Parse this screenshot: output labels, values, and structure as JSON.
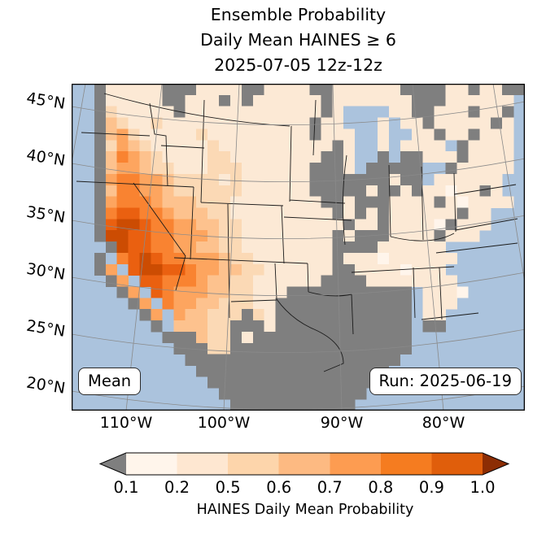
{
  "title": {
    "line1": "Ensemble Probability",
    "line2": "Daily Mean HAINES ≥ 6",
    "line3": "2025-07-05 12z-12z"
  },
  "map": {
    "mean_label": "Mean",
    "run_label": "Run: 2025-06-19",
    "y_ticks": [
      "45°N",
      "40°N",
      "35°N",
      "30°N",
      "25°N",
      "20°N"
    ],
    "x_ticks": [
      "110°W",
      "100°W",
      "90°W",
      "80°W"
    ],
    "colors": {
      "ocean": "#abc3dd",
      "graticule": "#8a8a8a",
      "state_borders": "#1a1a1a",
      "frame": "#000000"
    }
  },
  "colorbar": {
    "ticks": [
      "0.1",
      "0.2",
      "0.5",
      "0.6",
      "0.7",
      "0.8",
      "0.9",
      "1.0"
    ],
    "label": "HAINES Daily Mean Probability",
    "segment_colors": [
      "#fff5eb",
      "#fee7d1",
      "#fdd5ab",
      "#fdba82",
      "#fd9c51",
      "#f57c20",
      "#e05e0b"
    ],
    "under_arrow_color": "#7f7f7f",
    "over_arrow_color": "#8c2d04"
  },
  "chart_data": {
    "type": "heatmap",
    "title": "Ensemble Probability Daily Mean HAINES ≥ 6, 2025-07-05 12z-12z",
    "projection_hint": "Lambert-conformal style CONUS map, lat 20-45N labeled, lon 110-80W labeled",
    "colorbar": {
      "label": "HAINES Daily Mean Probability",
      "boundaries": [
        0.1,
        0.2,
        0.5,
        0.6,
        0.7,
        0.8,
        0.9,
        1.0
      ],
      "extend": "both",
      "under_color_meaning": "below 0.1 (gray cells)",
      "over_color_meaning": "at 1.0 (dark orange)"
    },
    "annotations": [
      "Mean",
      "Run: 2025-06-19"
    ],
    "legend": {
      "0": "#fff5eb",
      "1": "#fce9d5",
      "2": "#fbd9b5",
      "3": "#fdc28e",
      "4": "#fda55f",
      "5": "#f98331",
      "6": "#ea6010",
      "7": "#cc4c02",
      "g": "#7f7f7f",
      "L": "#abc3dd"
    },
    "grid_note": "Approximate 40x29 cell field; '.'=ocean, g=gray(<0.1), L=lake, 0-7 increasing probability",
    "grid": [
      "..g11111ggg1111gg1111gg111111gggg11g11gg",
      "..g11111gg111g1g111111g1111111ggg111111.",
      "..g211111g111111111111g1LLLL11gg111g11g.",
      "..g321121111111111111g11LLL1L11g11111g1.",
      "..g342111112111111111g111LL1LL11g11g111.",
      "..g24321111121111111111g1LL1L1111Lg1111.",
      "..g3543211112211111111gg1LLgLgg111g1111.",
      "..g344322111222111111ggg1LgggggLLg11111.",
      "..g455443222212111111ggggggg1ggL111111..",
      "..g355443222222111111ggggg1gg1g11011g1..",
      "..g4555433322211111111gg1ggg1111g101111.",
      "..g56655433322111111111g1g1g111111g11...",
      "..g677655443322111111111g11g11110g111...",
      "..g77665544432211111111g1ggg1111g111....",
      "...g7665544332211111111gggg111111.......",
      "..g.5676554443221111111g1110111111......",
      "..g4.677665443322111111gg11110111.......",
      "...g4.6655543322111111gggg11111111......",
      "....g4.654443322111ggggggggggg.1110.....",
      ".....g4.5443322211gggggggggggg.111......",
      "......g4.433222g21gggggggggggg.11.......",
      ".......g.33322ggg1gggggggggggg.gg.......",
      "........ggg322g1gggggggggggggg..........",
      ".........ggg22gggggggggggggggg..........",
      "..........ggggggggggggggggggg...........",
      "...........ggggggggggggggggg............",
      "............ggggggggggggggg.ggg.........",
      ".............ggggggggggggg..............",
      "..............ggggggggggg..............."
    ]
  }
}
